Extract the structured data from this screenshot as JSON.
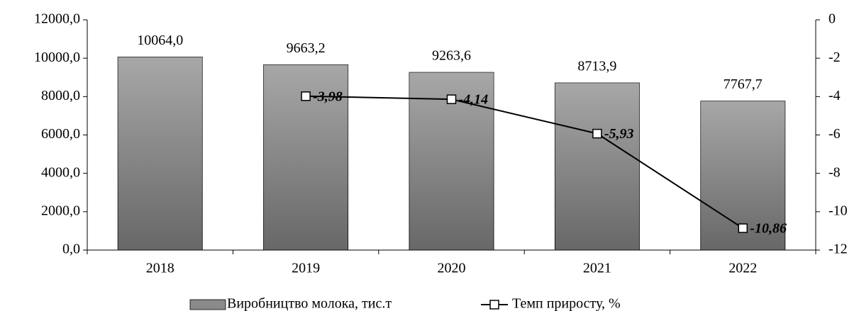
{
  "chart_data": {
    "type": "bar",
    "categories": [
      "2018",
      "2019",
      "2020",
      "2021",
      "2022"
    ],
    "series": [
      {
        "name": "Виробництво молока, тис.т",
        "color": "#8a8a8a",
        "type": "bar",
        "values": [
          10064.0,
          9663.2,
          9263.6,
          8713.9,
          7767.7
        ],
        "value_labels": [
          "10064,0",
          "9663,2",
          "9263,6",
          "8713,9",
          "7767,7"
        ]
      },
      {
        "name": "Темп приросту, %",
        "color": "#000000",
        "type": "line",
        "axis": "y2",
        "values": [
          null,
          -3.98,
          -4.14,
          -5.93,
          -10.86
        ],
        "value_labels": [
          null,
          "-3,98",
          "-4,14",
          "-5,93",
          "-10,86"
        ]
      }
    ],
    "ylim": [
      0,
      12000
    ],
    "yticks": [
      {
        "value": 0,
        "label": "0,0"
      },
      {
        "value": 2000,
        "label": "2000,0"
      },
      {
        "value": 4000,
        "label": "4000,0"
      },
      {
        "value": 6000,
        "label": "6000,0"
      },
      {
        "value": 8000,
        "label": "8000,0"
      },
      {
        "value": 10000,
        "label": "10000,0"
      },
      {
        "value": 12000,
        "label": "12000,0"
      }
    ],
    "y2lim": [
      -12,
      0
    ],
    "y2ticks": [
      -12,
      -10,
      -8,
      -6,
      -4,
      -2,
      0
    ],
    "legend": "bottom"
  }
}
